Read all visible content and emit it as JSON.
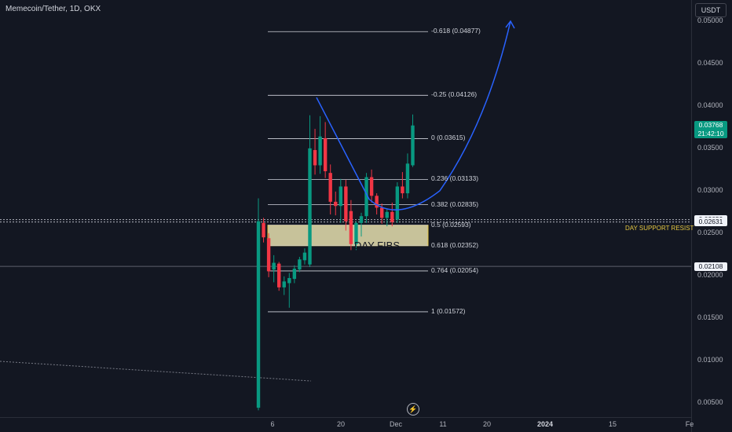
{
  "header": {
    "title": "Memecoin/Tether, 1D, OKX",
    "currency": "USDT"
  },
  "chart_data": {
    "type": "candlestick",
    "ylim": [
      0.0033,
      0.0525
    ],
    "y_ticks": [
      "0.00500",
      "0.01000",
      "0.01500",
      "0.02000",
      "0.02500",
      "0.03000",
      "0.03500",
      "0.04000",
      "0.04500",
      "0.05000"
    ],
    "y_tick_values": [
      0.005,
      0.01,
      0.015,
      0.02,
      0.025,
      0.03,
      0.035,
      0.04,
      0.045,
      0.05
    ],
    "x_ticks": [
      "6",
      "20",
      "Dec",
      "11",
      "20",
      "2024",
      "15",
      "Fe"
    ],
    "candles": [
      {
        "o": 0.0044,
        "h": 0.0291,
        "l": 0.0041,
        "c": 0.0264
      },
      {
        "o": 0.0262,
        "h": 0.0268,
        "l": 0.0239,
        "c": 0.0245
      },
      {
        "o": 0.0244,
        "h": 0.025,
        "l": 0.0198,
        "c": 0.0205
      },
      {
        "o": 0.0207,
        "h": 0.0224,
        "l": 0.0192,
        "c": 0.0215
      },
      {
        "o": 0.0214,
        "h": 0.0216,
        "l": 0.0182,
        "c": 0.0186
      },
      {
        "o": 0.0186,
        "h": 0.0199,
        "l": 0.0177,
        "c": 0.0193
      },
      {
        "o": 0.0191,
        "h": 0.0203,
        "l": 0.0162,
        "c": 0.0197
      },
      {
        "o": 0.0196,
        "h": 0.0212,
        "l": 0.0191,
        "c": 0.0208
      },
      {
        "o": 0.0207,
        "h": 0.0222,
        "l": 0.0204,
        "c": 0.0219
      },
      {
        "o": 0.0218,
        "h": 0.0232,
        "l": 0.0213,
        "c": 0.0227
      },
      {
        "o": 0.0213,
        "h": 0.0389,
        "l": 0.021,
        "c": 0.035
      },
      {
        "o": 0.0348,
        "h": 0.0373,
        "l": 0.0319,
        "c": 0.033
      },
      {
        "o": 0.033,
        "h": 0.0388,
        "l": 0.032,
        "c": 0.0364
      },
      {
        "o": 0.0362,
        "h": 0.0381,
        "l": 0.0315,
        "c": 0.0323
      },
      {
        "o": 0.0321,
        "h": 0.0331,
        "l": 0.0272,
        "c": 0.0287
      },
      {
        "o": 0.0287,
        "h": 0.0299,
        "l": 0.0271,
        "c": 0.0282
      },
      {
        "o": 0.0282,
        "h": 0.0314,
        "l": 0.0262,
        "c": 0.0305
      },
      {
        "o": 0.0305,
        "h": 0.0313,
        "l": 0.0253,
        "c": 0.0264
      },
      {
        "o": 0.0276,
        "h": 0.0289,
        "l": 0.023,
        "c": 0.0237
      },
      {
        "o": 0.0237,
        "h": 0.0264,
        "l": 0.023,
        "c": 0.0262
      },
      {
        "o": 0.0262,
        "h": 0.0274,
        "l": 0.0246,
        "c": 0.027
      },
      {
        "o": 0.027,
        "h": 0.0321,
        "l": 0.0262,
        "c": 0.0316
      },
      {
        "o": 0.0316,
        "h": 0.0325,
        "l": 0.0286,
        "c": 0.0294
      },
      {
        "o": 0.0294,
        "h": 0.0297,
        "l": 0.0272,
        "c": 0.028
      },
      {
        "o": 0.028,
        "h": 0.0285,
        "l": 0.0261,
        "c": 0.0268
      },
      {
        "o": 0.0268,
        "h": 0.0279,
        "l": 0.0258,
        "c": 0.0275
      },
      {
        "o": 0.0275,
        "h": 0.0286,
        "l": 0.0258,
        "c": 0.0263
      },
      {
        "o": 0.0266,
        "h": 0.031,
        "l": 0.0262,
        "c": 0.0305
      },
      {
        "o": 0.0305,
        "h": 0.0322,
        "l": 0.0291,
        "c": 0.0297
      },
      {
        "o": 0.0297,
        "h": 0.0344,
        "l": 0.0291,
        "c": 0.0332
      },
      {
        "o": 0.033,
        "h": 0.039,
        "l": 0.0328,
        "c": 0.0377
      }
    ],
    "fib_levels": [
      {
        "ratio": "-0.618",
        "value": 0.04877
      },
      {
        "ratio": "-0.25",
        "value": 0.04126
      },
      {
        "ratio": "0",
        "value": 0.03615
      },
      {
        "ratio": "0.236",
        "value": 0.03133
      },
      {
        "ratio": "0.382",
        "value": 0.02835
      },
      {
        "ratio": "0.5",
        "value": 0.02593
      },
      {
        "ratio": "0.618",
        "value": 0.02352
      },
      {
        "ratio": "0.764",
        "value": 0.02054
      },
      {
        "ratio": "1",
        "value": 0.01572
      }
    ],
    "fib_box_label": "DAY FIBS",
    "support_label": "DAY SUPPORT RESIST",
    "horizontal_levels": [
      0.02659,
      0.02631,
      0.02108
    ],
    "price_tags": [
      {
        "label": "0.03768",
        "sub": "21:42:10",
        "value": 0.03768,
        "style": "green"
      },
      {
        "label": "0.02659",
        "value": 0.02659,
        "style": "white"
      },
      {
        "label": "0.02631",
        "value": 0.02631,
        "style": "white"
      },
      {
        "label": "0.02108",
        "value": 0.02108,
        "style": "white"
      }
    ],
    "projection_path_values": [
      0.041,
      0.029,
      0.0268,
      0.03,
      0.038,
      0.05
    ],
    "colors": {
      "up": "#089981",
      "down": "#f23645",
      "projection": "#2962ff",
      "fib_box": "#c7c29a",
      "support": "#e4c640"
    }
  }
}
